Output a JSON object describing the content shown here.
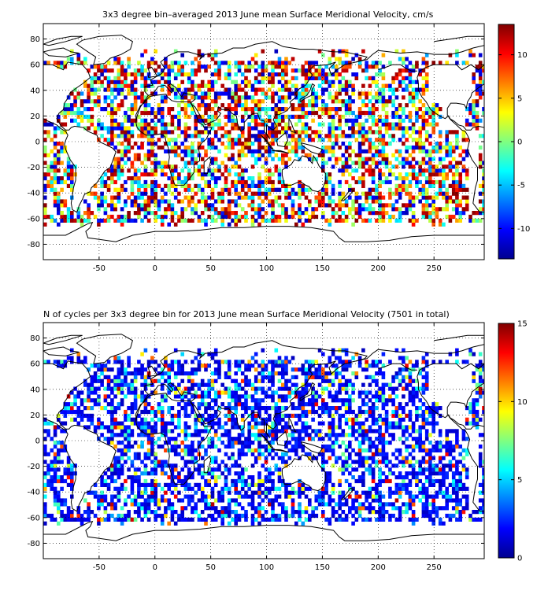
{
  "colors": {
    "frame": "#000000",
    "grid": "#000000",
    "land_outline": "#000000",
    "background": "#ffffff"
  },
  "map1": {
    "title": "3x3 degree bin–averaged 2013 June mean Surface Meridional Velocity, cm/s",
    "colorbar_ticks": [
      "10",
      "5",
      "0",
      "-5",
      "-10"
    ],
    "colorbar_tick_values": [
      10,
      5,
      0,
      -5,
      -10
    ],
    "colorbar_range": [
      -13.5,
      13.5
    ]
  },
  "map2": {
    "title": "N of cycles per 3x3 degree bin for 2013 June mean Surface Meridional Velocity (7501 in total)",
    "colorbar_ticks": [
      "15",
      "10",
      "5",
      "0"
    ],
    "colorbar_tick_values": [
      15,
      10,
      5,
      0
    ],
    "colorbar_range": [
      0,
      15
    ]
  },
  "axes": {
    "x_range": [
      -100,
      295
    ],
    "y_range": [
      -92,
      92
    ],
    "x_ticks": [
      "-50",
      "0",
      "50",
      "100",
      "150",
      "200",
      "250"
    ],
    "x_tick_values": [
      -50,
      0,
      50,
      100,
      150,
      200,
      250
    ],
    "y_ticks": [
      "80",
      "60",
      "40",
      "20",
      "0",
      "-20",
      "-40",
      "-60",
      "-80"
    ],
    "y_tick_values": [
      80,
      60,
      40,
      20,
      0,
      -20,
      -40,
      -60,
      -80
    ],
    "grid": true,
    "colormap": "jet",
    "bin_size_deg": 3
  }
}
